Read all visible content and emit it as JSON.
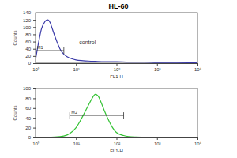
{
  "chart_data": [
    {
      "type": "line",
      "title": "HL-60",
      "x_label": "FL1-H",
      "y_label": "Counts",
      "log": "x",
      "xlim": [
        1,
        10000
      ],
      "xticks": [
        {
          "value": 1,
          "label": "10⁰"
        },
        {
          "value": 10,
          "label": "10¹"
        },
        {
          "value": 100,
          "label": "10²"
        },
        {
          "value": 1000,
          "label": "10³"
        },
        {
          "value": 10000,
          "label": "10⁴"
        }
      ],
      "ylim": [
        0,
        140
      ],
      "yticks": [
        0,
        20,
        40,
        60,
        80,
        100,
        120,
        140
      ],
      "x": [
        1,
        1.2,
        1.4,
        1.6,
        1.8,
        2,
        2.3,
        2.6,
        3,
        3.5,
        4,
        5,
        6,
        8,
        10,
        15,
        20,
        30,
        50,
        100,
        200,
        500,
        1000,
        3000,
        10000
      ],
      "series": [
        {
          "color": "#3a3aa8",
          "values": [
            10,
            60,
            95,
            110,
            118,
            120,
            112,
            95,
            75,
            55,
            40,
            25,
            18,
            12,
            9,
            7,
            6,
            5,
            4,
            4,
            3,
            3,
            2,
            2,
            1
          ]
        }
      ],
      "gates": [
        {
          "label": "M1",
          "x": [
            1,
            5
          ],
          "y": 35
        }
      ],
      "annotations": [
        "control"
      ]
    },
    {
      "type": "line",
      "x_label": "FL1-H",
      "y_label": "Counts",
      "log": "x",
      "xlim": [
        1,
        10000
      ],
      "xticks": [
        {
          "value": 1,
          "label": "10⁰"
        },
        {
          "value": 10,
          "label": "10¹"
        },
        {
          "value": 100,
          "label": "10²"
        },
        {
          "value": 1000,
          "label": "10³"
        },
        {
          "value": 10000,
          "label": "10⁴"
        }
      ],
      "ylim": [
        0,
        100
      ],
      "yticks": [
        0,
        20,
        40,
        60,
        80,
        100
      ],
      "x": [
        1,
        3,
        5,
        7,
        10,
        15,
        20,
        25,
        30,
        35,
        40,
        50,
        60,
        80,
        100,
        150,
        200,
        300,
        1000,
        10000
      ],
      "series": [
        {
          "color": "#33c233",
          "values": [
            0,
            1,
            3,
            8,
            20,
            45,
            65,
            80,
            88,
            85,
            75,
            55,
            40,
            20,
            10,
            4,
            2,
            1,
            0,
            0
          ]
        }
      ],
      "gates": [
        {
          "label": "M2",
          "x": [
            7,
            150
          ],
          "y": 45
        }
      ]
    }
  ]
}
